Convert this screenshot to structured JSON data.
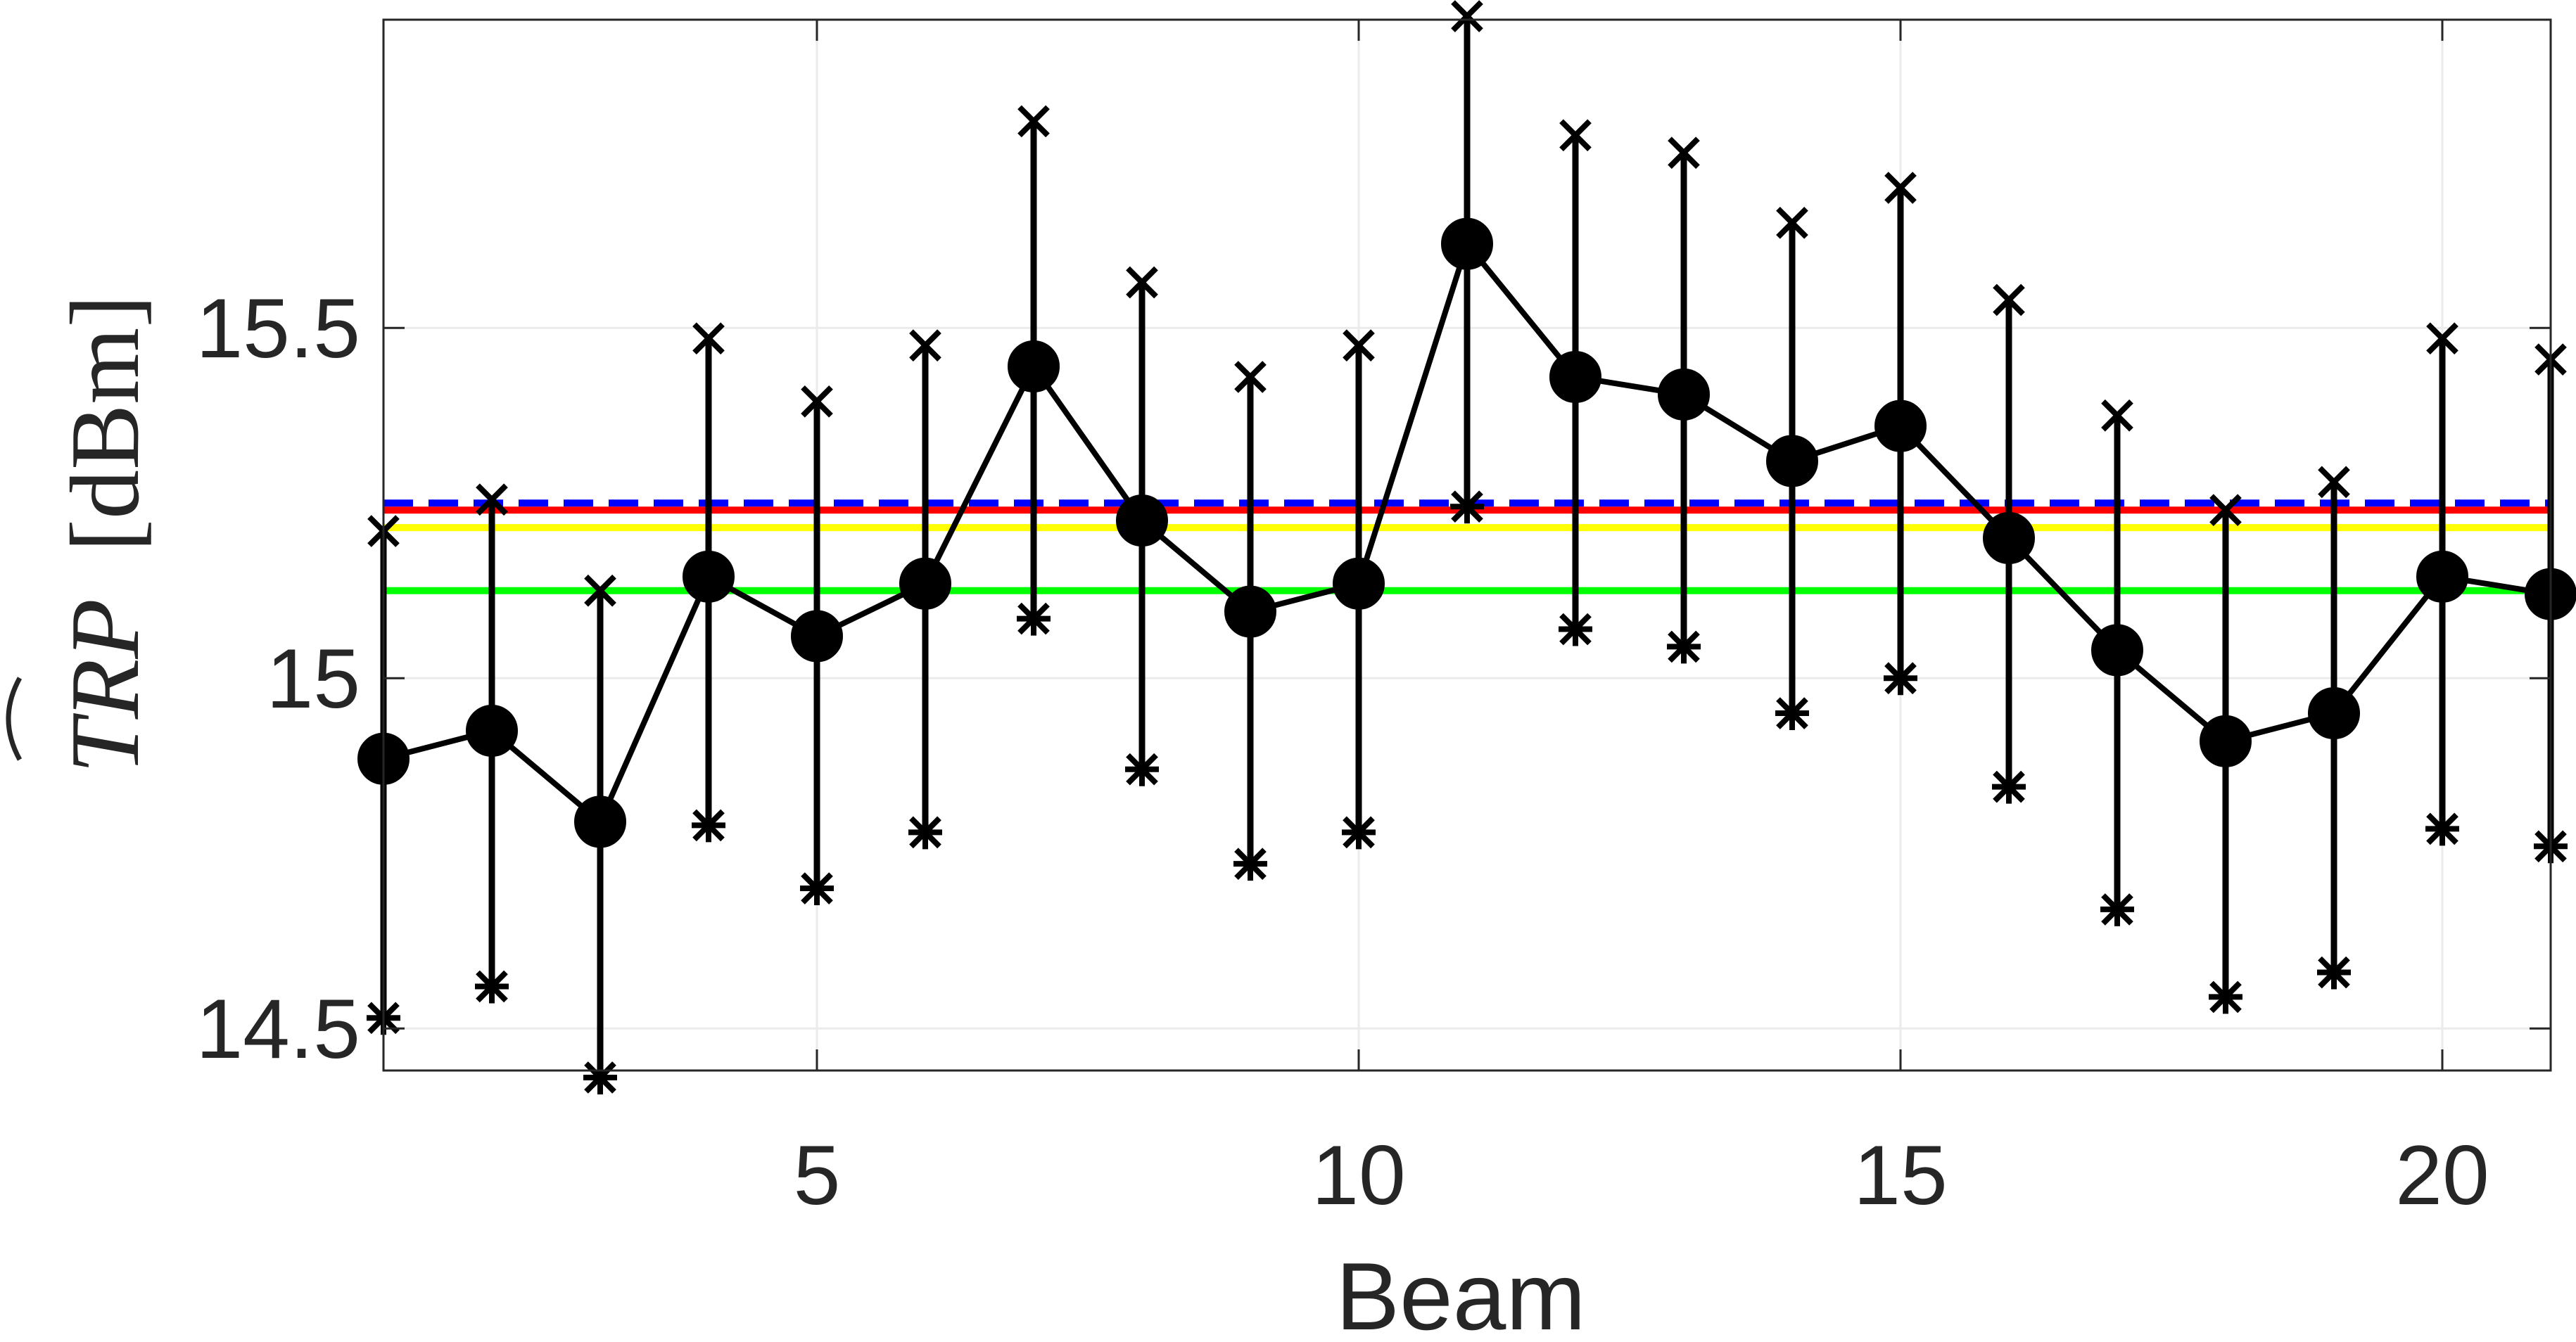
{
  "chart_data": {
    "type": "line",
    "title": "",
    "xlabel": "Beam",
    "ylabel": {
      "symbol": "TRP",
      "unit": "[dBm]"
    },
    "xlim": [
      1,
      21
    ],
    "ylim": [
      14.44,
      15.94
    ],
    "xticks": [
      5,
      10,
      15,
      20
    ],
    "yticks": [
      14.5,
      15,
      15.5
    ],
    "xtick_labels": [
      "5",
      "10",
      "15",
      "20"
    ],
    "ytick_labels": [
      "14.5",
      "15",
      "15.5"
    ],
    "grid": true,
    "colors": {
      "data": "#000000",
      "red": "#ff0000",
      "blue": "#0000ff",
      "yellow": "#ffff00",
      "green": "#00ff00",
      "axes": "#262626",
      "grid": "#ebebeb"
    },
    "x": [
      1,
      2,
      3,
      4,
      5,
      6,
      7,
      8,
      9,
      10,
      11,
      12,
      13,
      14,
      15,
      16,
      17,
      18,
      19,
      20,
      21
    ],
    "series": [
      {
        "name": "mean",
        "marker": "filled-circle",
        "values": [
          14.885,
          14.925,
          14.795,
          15.145,
          15.06,
          15.135,
          15.445,
          15.225,
          15.095,
          15.135,
          15.62,
          15.43,
          15.405,
          15.31,
          15.36,
          15.2,
          15.04,
          14.91,
          14.95,
          15.145,
          15.12
        ]
      },
      {
        "name": "upper",
        "marker": "x",
        "values": [
          15.21,
          15.255,
          15.125,
          15.485,
          15.395,
          15.475,
          15.795,
          15.565,
          15.43,
          15.475,
          15.945,
          15.775,
          15.75,
          15.65,
          15.7,
          15.54,
          15.375,
          15.24,
          15.28,
          15.485,
          15.455
        ]
      },
      {
        "name": "lower",
        "marker": "asterisk",
        "values": [
          14.515,
          14.56,
          14.43,
          14.79,
          14.7,
          14.78,
          15.085,
          14.87,
          14.735,
          14.78,
          15.245,
          15.07,
          15.045,
          14.95,
          15.0,
          14.845,
          14.67,
          14.545,
          14.58,
          14.785,
          14.76
        ]
      }
    ],
    "reference_lines": [
      {
        "name": "red-line",
        "color": "red",
        "style": "solid",
        "y": 15.24
      },
      {
        "name": "blue-dashed-line",
        "color": "blue",
        "style": "dashed",
        "y": 15.25
      },
      {
        "name": "yellow-line",
        "color": "yellow",
        "style": "solid",
        "y": 15.215
      },
      {
        "name": "green-line",
        "color": "green",
        "style": "solid",
        "y": 15.125
      }
    ]
  }
}
